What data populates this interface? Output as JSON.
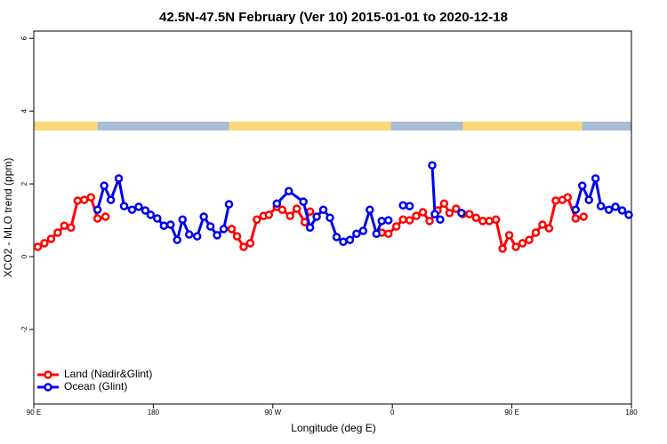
{
  "chart_data": {
    "type": "line",
    "title": "42.5N-47.5N February (Ver 10)   2015-01-01 to 2020-12-18",
    "x_label": "Longitude (deg E)",
    "y_label": "XCO2 - MLO trend (ppm)",
    "xlim": [
      90,
      540
    ],
    "ylim": [
      -4.05,
      6.2
    ],
    "xticks": [
      {
        "value": 90,
        "label": "90 E"
      },
      180,
      {
        "value": 270,
        "label": "90 W"
      },
      {
        "value": 360,
        "label": "0"
      },
      {
        "value": 450,
        "label": "90 E"
      },
      {
        "value": 540,
        "label": "180"
      }
    ],
    "yticks": [
      -2,
      0,
      2,
      4,
      6
    ],
    "legend": "bottom-left",
    "land_mask": {
      "land_color": "#f8d878",
      "ocean_color": "#a9bcd8",
      "land_ranges": [
        [
          90,
          138
        ],
        [
          237,
          359
        ],
        [
          413,
          503
        ]
      ]
    },
    "series": [
      {
        "name": "Land (Nadir&Glint)",
        "color": "#ff0000",
        "x": [
          93,
          98,
          103,
          108,
          113,
          118,
          123,
          128,
          133,
          138,
          144,
          null,
          239,
          243,
          248,
          253,
          258,
          263,
          267,
          273,
          277,
          283,
          288,
          294,
          298,
          null,
          352,
          357,
          363,
          368,
          373,
          378,
          383,
          388,
          394,
          399,
          403,
          408,
          413,
          418,
          423,
          428,
          433,
          438,
          443,
          448,
          453,
          458,
          463,
          468,
          473,
          478,
          483,
          488,
          492,
          498,
          504
        ],
        "values": [
          0.27,
          0.37,
          0.49,
          0.66,
          0.85,
          0.8,
          1.54,
          1.56,
          1.63,
          1.05,
          1.1,
          null,
          0.76,
          0.56,
          0.27,
          0.37,
          1.02,
          1.12,
          1.15,
          1.37,
          1.29,
          1.12,
          1.32,
          0.95,
          1.24,
          null,
          0.66,
          0.63,
          0.83,
          1.02,
          1.0,
          1.12,
          1.22,
          0.98,
          1.27,
          1.46,
          1.2,
          1.32,
          1.17,
          1.17,
          1.07,
          0.98,
          0.98,
          1.02,
          0.22,
          0.59,
          0.27,
          0.37,
          0.46,
          0.66,
          0.88,
          0.78,
          1.54,
          1.56,
          1.63,
          1.05,
          1.1
        ]
      },
      {
        "name": "Ocean (Glint)",
        "color": "#0000ee",
        "x": [
          138,
          143,
          148,
          154,
          158,
          164,
          169,
          174,
          178,
          183,
          188,
          193,
          198,
          202,
          207,
          213,
          218,
          223,
          228,
          233,
          237,
          null,
          273,
          282,
          293,
          298,
          303,
          308,
          313,
          318,
          323,
          328,
          333,
          338,
          343,
          348,
          352,
          357,
          null,
          368,
          373,
          null,
          390,
          392,
          396,
          null,
          412,
          null,
          498,
          503,
          508,
          513,
          517,
          523,
          528,
          533,
          538
        ],
        "values": [
          1.29,
          1.95,
          1.56,
          2.15,
          1.39,
          1.29,
          1.37,
          1.27,
          1.15,
          1.05,
          0.85,
          0.88,
          0.46,
          1.02,
          0.61,
          0.56,
          1.1,
          0.83,
          0.59,
          0.76,
          1.44,
          null,
          1.46,
          1.8,
          1.51,
          0.8,
          1.1,
          1.29,
          1.07,
          0.54,
          0.41,
          0.46,
          0.63,
          0.71,
          1.29,
          0.63,
          0.98,
          1.0,
          null,
          1.41,
          1.39,
          null,
          2.51,
          1.17,
          1.02,
          null,
          1.2,
          null,
          1.29,
          1.95,
          1.56,
          2.15,
          1.39,
          1.29,
          1.37,
          1.27,
          1.15
        ]
      }
    ]
  }
}
